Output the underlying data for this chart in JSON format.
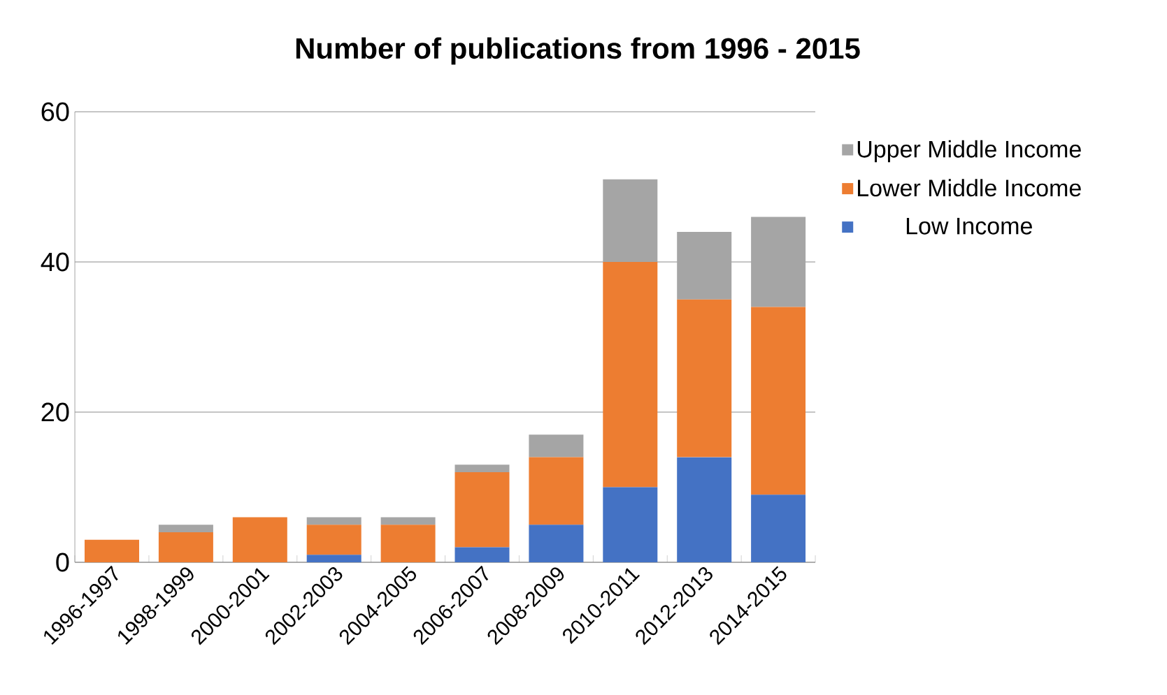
{
  "chart_data": {
    "type": "bar",
    "stacked": true,
    "title": "Number of publications from 1996 - 2015",
    "categories": [
      "1996-1997",
      "1998-1999",
      "2000-2001",
      "2002-2003",
      "2004-2005",
      "2006-2007",
      "2008-2009",
      "2010-2011",
      "2012-2013",
      "2014-2015"
    ],
    "series": [
      {
        "name": "Low Income",
        "color": "#4472c4",
        "values": [
          0,
          0,
          0,
          1,
          0,
          2,
          5,
          10,
          14,
          9
        ]
      },
      {
        "name": "Lower Middle Income",
        "color": "#ed7d31",
        "values": [
          3,
          4,
          6,
          4,
          5,
          10,
          9,
          30,
          21,
          25
        ]
      },
      {
        "name": "Upper Middle Income",
        "color": "#a5a5a5",
        "values": [
          0,
          1,
          0,
          1,
          1,
          1,
          3,
          11,
          9,
          12
        ]
      }
    ],
    "ylim": [
      0,
      60
    ],
    "yticks": [
      0,
      20,
      40,
      60
    ],
    "grid": "y",
    "legend": "right"
  }
}
